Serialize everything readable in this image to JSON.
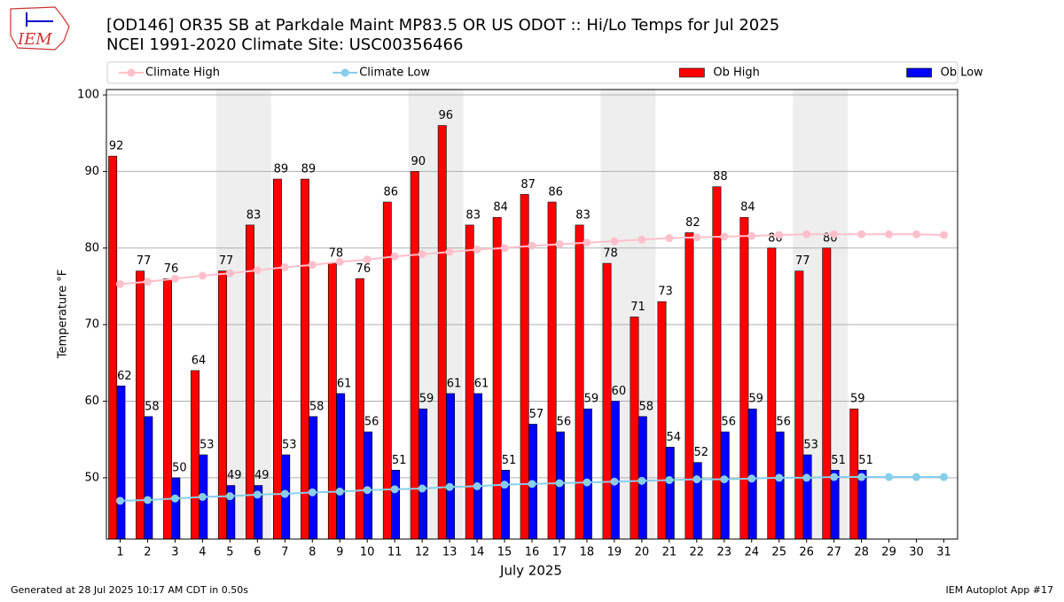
{
  "chart_data": {
    "type": "bar",
    "title": "[OD146] OR35 SB at Parkdale Maint MP83.5 OR US ODOT :: Hi/Lo Temps for Jul 2025",
    "subtitle": "NCEI 1991-2020 Climate Site: USC00356466",
    "logo_text": "IEM",
    "x_label": "July 2025",
    "y_label": "Temperature °F",
    "footer_left": "Generated at 28 Jul 2025 10:17 AM CDT in 0.50s",
    "footer_right": "IEM Autoplot App #17",
    "legend": "top",
    "grid": true,
    "x": [
      1,
      2,
      3,
      4,
      5,
      6,
      7,
      8,
      9,
      10,
      11,
      12,
      13,
      14,
      15,
      16,
      17,
      18,
      19,
      20,
      21,
      22,
      23,
      24,
      25,
      26,
      27,
      28,
      29,
      30,
      31
    ],
    "xlim": [
      0.5,
      31.5
    ],
    "xticks": [
      1,
      2,
      3,
      4,
      5,
      6,
      7,
      8,
      9,
      10,
      11,
      12,
      13,
      14,
      15,
      16,
      17,
      18,
      19,
      20,
      21,
      22,
      23,
      24,
      25,
      26,
      27,
      28,
      29,
      30,
      31
    ],
    "ylim": [
      42,
      100.7
    ],
    "yticks": [
      50,
      60,
      70,
      80,
      90,
      100
    ],
    "highlight_spans": [
      [
        4.5,
        6.5
      ],
      [
        11.5,
        13.5
      ],
      [
        18.5,
        20.5
      ],
      [
        25.5,
        27.5
      ]
    ],
    "highlight_color": "#eeeeee",
    "series": [
      {
        "name": "Climate High",
        "kind": "line",
        "color": "#ffc0cb",
        "values": [
          75.3,
          75.6,
          76.0,
          76.4,
          76.7,
          77.1,
          77.5,
          77.8,
          78.2,
          78.5,
          78.9,
          79.2,
          79.5,
          79.8,
          80.0,
          80.3,
          80.5,
          80.7,
          80.9,
          81.1,
          81.3,
          81.4,
          81.5,
          81.6,
          81.7,
          81.8,
          81.8,
          81.8,
          81.8,
          81.8,
          81.7
        ]
      },
      {
        "name": "Climate Low",
        "kind": "line",
        "color": "#87ceeb",
        "values": [
          47.0,
          47.1,
          47.3,
          47.5,
          47.6,
          47.8,
          47.9,
          48.1,
          48.2,
          48.4,
          48.5,
          48.6,
          48.8,
          48.9,
          49.1,
          49.2,
          49.3,
          49.4,
          49.5,
          49.6,
          49.7,
          49.8,
          49.8,
          49.9,
          50.0,
          50.0,
          50.1,
          50.1,
          50.1,
          50.1,
          50.1
        ]
      },
      {
        "name": "Ob High",
        "kind": "bar",
        "color": "#ff0000",
        "offset": -0.42,
        "values": [
          92,
          77,
          76,
          64,
          77,
          83,
          89,
          89,
          78,
          76,
          86,
          90,
          96,
          83,
          84,
          87,
          86,
          83,
          78,
          71,
          73,
          82,
          88,
          84,
          80,
          77,
          80,
          59,
          null,
          null,
          null
        ]
      },
      {
        "name": "Ob Low",
        "kind": "bar",
        "color": "#0000ff",
        "offset": -0.12,
        "values": [
          62,
          58,
          50,
          53,
          49,
          49,
          53,
          58,
          61,
          56,
          51,
          59,
          61,
          61,
          51,
          57,
          56,
          59,
          60,
          58,
          54,
          52,
          56,
          59,
          56,
          53,
          51,
          51,
          null,
          null,
          null
        ]
      }
    ]
  }
}
